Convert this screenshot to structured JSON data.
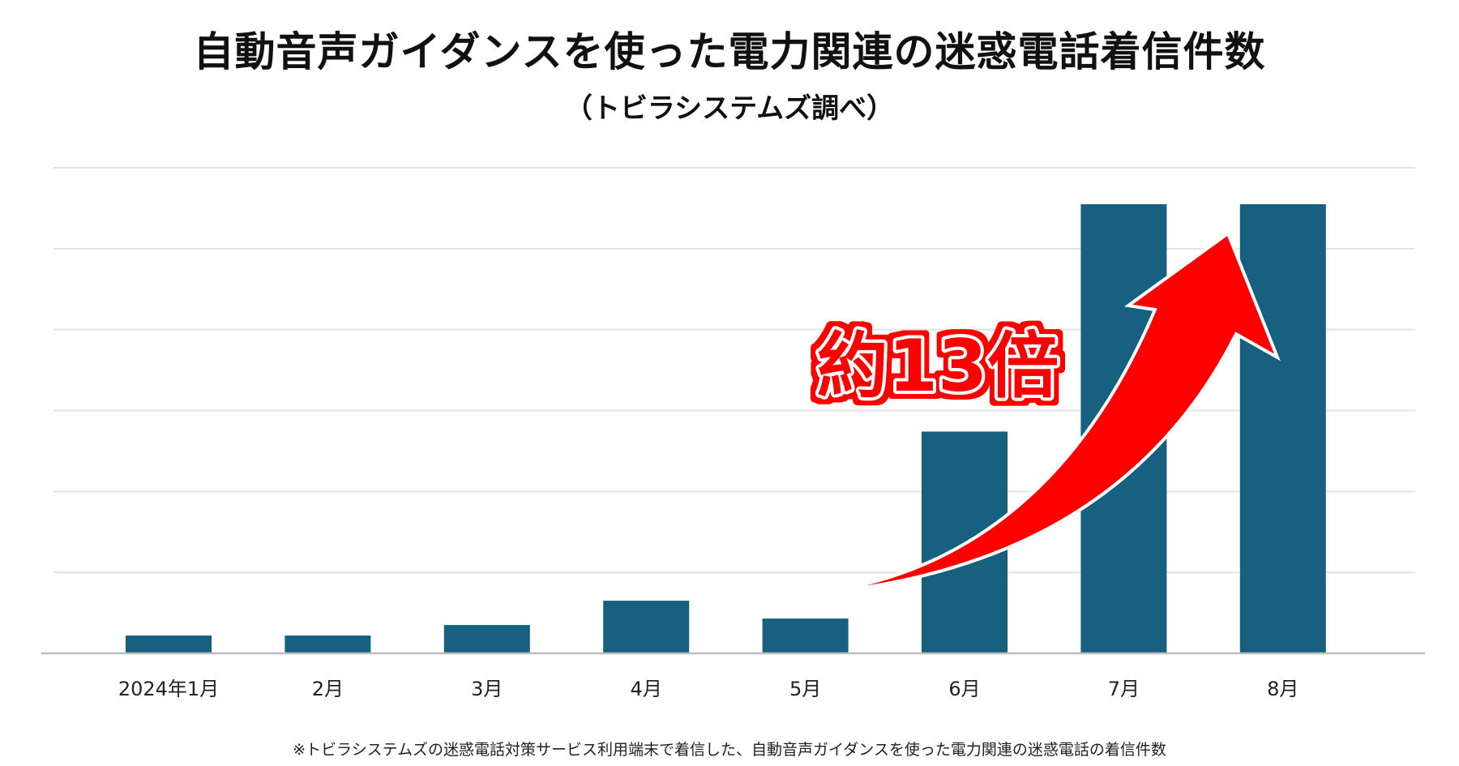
{
  "chart_data": {
    "type": "bar",
    "title": "自動音声ガイダンスを使った電力関連の迷惑電話着信件数",
    "subtitle": "（トビラシステムズ調べ）",
    "categories": [
      "2024年1月",
      "2月",
      "3月",
      "4月",
      "5月",
      "6月",
      "7月",
      "8月"
    ],
    "values": [
      0.22,
      0.22,
      0.35,
      0.65,
      0.43,
      2.74,
      5.55,
      5.55
    ],
    "ylim": [
      0,
      6
    ],
    "y_tick_labels_shown": false,
    "grid": true,
    "bar_color": "#17607f",
    "annotation": {
      "text": "約13倍",
      "color": "#ff0000",
      "arrow": "from 5月 to 8月"
    },
    "footnote": "※トビラシステムズの迷惑電話対策サービス利用端末で着信した、自動音声ガイダンスを使った電力関連の迷惑電話の着信件数"
  }
}
